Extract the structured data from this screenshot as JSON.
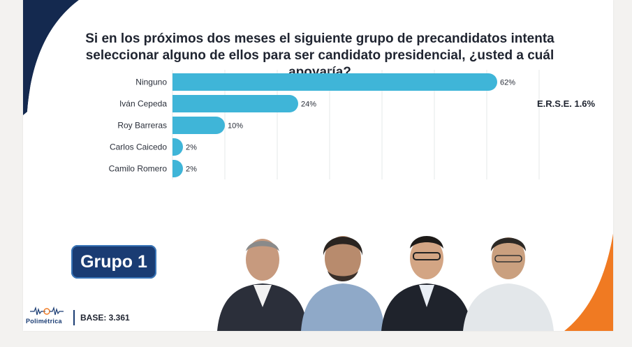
{
  "question": "Si en los próximos dos meses el siguiente grupo de precandidatos intenta seleccionar alguno de ellos para ser candidato presidencial, ¿usted a cuál apoyaría?",
  "erse": "E.R.S.E. 1.6%",
  "group_label": "Grupo 1",
  "base": "BASE: 3.361",
  "logo": {
    "name": "Polimétrica",
    "icon": "soundwave-logo-icon"
  },
  "colors": {
    "bar": "#3fb5d8",
    "brand_navy": "#1a3c73",
    "accent_orange": "#f07a22"
  },
  "chart_data": {
    "type": "bar",
    "orientation": "horizontal",
    "categories": [
      "Ninguno",
      "Iván Cepeda",
      "Roy Barreras",
      "Carlos Caicedo",
      "Camilo Romero"
    ],
    "values": [
      62,
      24,
      10,
      2,
      2
    ],
    "value_labels": [
      "62%",
      "24%",
      "10%",
      "2%",
      "2%"
    ],
    "xlim": [
      0,
      70
    ],
    "grid": true
  },
  "photos": [
    {
      "name": "candidate-photo-1"
    },
    {
      "name": "candidate-photo-2"
    },
    {
      "name": "candidate-photo-3"
    },
    {
      "name": "candidate-photo-4"
    }
  ]
}
